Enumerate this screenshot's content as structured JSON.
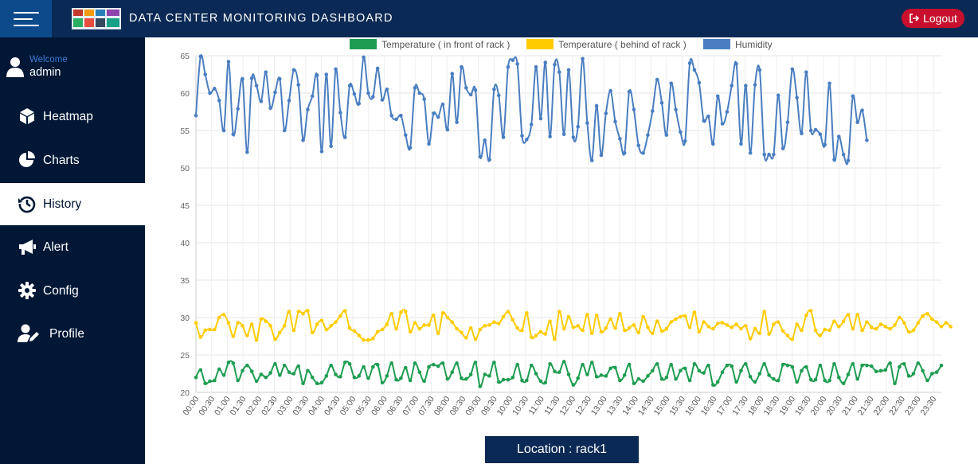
{
  "header": {
    "title": "DATA CENTER MONITORING DASHBOARD",
    "logout_label": "Logout"
  },
  "user": {
    "welcome": "Welcome",
    "name": "admin"
  },
  "sidebar": {
    "items": [
      {
        "label": "Heatmap",
        "icon": "cube-icon",
        "active": false
      },
      {
        "label": "Charts",
        "icon": "pie-chart-icon",
        "active": false
      },
      {
        "label": "History",
        "icon": "history-icon",
        "active": true
      },
      {
        "label": "Alert",
        "icon": "megaphone-icon",
        "active": false
      },
      {
        "label": "Config",
        "icon": "gear-icon",
        "active": false
      },
      {
        "label": "Profile",
        "icon": "user-edit-icon",
        "active": false
      }
    ]
  },
  "location": "Location : rack1",
  "colors": {
    "header": "#0a2a55",
    "sidebar": "#001735",
    "logout": "#c8102e",
    "front": "#1e9d52",
    "behind": "#ffcc00",
    "humidity": "#4a7ec0"
  },
  "chart_data": {
    "type": "line",
    "ylim": [
      20,
      65
    ],
    "yticks": [
      20,
      25,
      30,
      35,
      40,
      45,
      50,
      55,
      60,
      65
    ],
    "grid": true,
    "legend_position": "top-center",
    "x_tick_labels": [
      "00:00",
      "00:30",
      "01:00",
      "01:30",
      "02:00",
      "02:30",
      "03:00",
      "03:30",
      "04:00",
      "04:30",
      "05:00",
      "05:30",
      "06:00",
      "06:30",
      "07:00",
      "07:30",
      "08:00",
      "08:30",
      "09:00",
      "09:30",
      "10:00",
      "10:30",
      "11:00",
      "11:30",
      "12:00",
      "12:30",
      "13:00",
      "13:30",
      "14:00",
      "14:30",
      "15:00",
      "15:30",
      "16:00",
      "16:30",
      "17:00",
      "17:30",
      "18:00",
      "18:30",
      "19:00",
      "19:30",
      "20:00",
      "20:30",
      "21:00",
      "21:30",
      "22:00",
      "22:30",
      "23:00",
      "23:30"
    ],
    "series": [
      {
        "name": "Temperature ( in front of rack )",
        "color": "#1e9d52",
        "values": [
          22.0,
          23.0,
          21.2,
          21.5,
          21.6,
          23.1,
          22.3,
          24.0,
          23.9,
          21.6,
          22.9,
          23.6,
          22.8,
          21.5,
          22.4,
          22.0,
          22.6,
          23.8,
          22.3,
          23.6,
          22.7,
          22.5,
          23.5,
          21.2,
          22.9,
          22.0,
          21.2,
          21.3,
          22.2,
          23.6,
          22.4,
          22.1,
          24.0,
          23.8,
          22.0,
          22.2,
          23.4,
          21.9,
          23.4,
          23.7,
          21.3,
          22.2,
          23.9,
          21.7,
          21.9,
          23.3,
          21.6,
          23.9,
          22.7,
          21.5,
          23.4,
          23.7,
          23.5,
          23.9,
          21.8,
          22.7,
          23.9,
          21.9,
          21.8,
          22.4,
          24.0,
          20.8,
          22.4,
          22.2,
          24.0,
          21.4,
          21.7,
          21.7,
          22.0,
          23.7,
          21.6,
          21.6,
          23.6,
          22.5,
          21.5,
          21.3,
          23.8,
          22.8,
          22.7,
          24.1,
          22.4,
          21.0,
          21.9,
          23.7,
          22.4,
          24.0,
          22.1,
          22.3,
          22.2,
          23.2,
          23.3,
          21.6,
          22.3,
          23.7,
          21.2,
          21.8,
          21.5,
          22.2,
          22.9,
          23.8,
          21.8,
          22.0,
          23.7,
          21.8,
          22.9,
          23.2,
          21.6,
          23.8,
          22.9,
          22.6,
          23.6,
          21.0,
          21.4,
          22.7,
          23.6,
          23.5,
          21.4,
          22.9,
          23.8,
          22.1,
          21.4,
          22.5,
          23.8,
          22.3,
          21.8,
          21.6,
          23.7,
          23.6,
          23.4,
          21.4,
          22.9,
          23.4,
          21.7,
          21.7,
          23.6,
          21.6,
          21.6,
          23.8,
          22.0,
          21.2,
          22.4,
          23.8,
          21.8,
          23.6,
          23.6,
          23.5,
          22.8,
          22.9,
          23.0,
          23.9,
          21.2,
          23.4,
          23.8,
          22.2,
          22.5,
          23.9,
          22.9,
          21.6,
          22.5,
          22.7,
          23.6
        ]
      },
      {
        "name": "Temperature ( behind of rack )",
        "color": "#ffcc00",
        "values": [
          29.3,
          27.4,
          28.3,
          28.4,
          28.4,
          30.0,
          30.4,
          29.3,
          27.5,
          29.3,
          28.9,
          27.6,
          29.1,
          27.0,
          29.8,
          29.5,
          28.9,
          27.1,
          28.0,
          28.9,
          30.8,
          28.3,
          30.8,
          30.5,
          30.9,
          28.0,
          29.1,
          29.6,
          28.4,
          28.9,
          29.4,
          30.2,
          30.9,
          28.6,
          28.2,
          27.6,
          27.0,
          27.0,
          27.2,
          28.1,
          28.4,
          29.1,
          30.5,
          28.5,
          30.7,
          30.8,
          28.1,
          29.3,
          28.5,
          29.0,
          29.0,
          30.3,
          27.9,
          30.6,
          30.0,
          29.4,
          28.5,
          28.0,
          27.3,
          28.6,
          27.1,
          28.4,
          28.9,
          29.0,
          29.4,
          29.2,
          30.1,
          30.8,
          29.7,
          28.6,
          28.3,
          30.6,
          27.4,
          27.6,
          28.1,
          27.8,
          29.5,
          27.1,
          30.8,
          28.5,
          30.1,
          28.7,
          28.9,
          28.3,
          30.4,
          27.9,
          30.3,
          28.1,
          28.6,
          29.8,
          28.6,
          30.5,
          28.3,
          28.6,
          29.0,
          28.0,
          30.1,
          28.7,
          27.9,
          29.5,
          28.2,
          28.5,
          29.4,
          29.8,
          30.1,
          30.2,
          28.7,
          30.7,
          28.1,
          29.4,
          28.8,
          28.5,
          29.2,
          29.3,
          29.0,
          28.7,
          29.1,
          28.5,
          28.9,
          27.2,
          28.5,
          27.9,
          30.8,
          27.8,
          29.1,
          29.4,
          28.2,
          27.6,
          27.1,
          29.1,
          28.3,
          30.3,
          30.9,
          28.3,
          27.6,
          28.4,
          28.3,
          29.5,
          28.8,
          29.5,
          30.4,
          28.5,
          30.4,
          28.3,
          29.4,
          28.7,
          28.5,
          29.1,
          28.8,
          28.5,
          29.0,
          30.0,
          29.3,
          28.1,
          28.3,
          29.3,
          30.2,
          30.5,
          29.8,
          29.4,
          28.8,
          29.3,
          28.8
        ]
      },
      {
        "name": "Humidity",
        "color": "#4a7ec0",
        "values": [
          57.0,
          64.9,
          62.5,
          60.0,
          60.6,
          59.0,
          55.0,
          64.2,
          54.5,
          57.9,
          61.9,
          52.1,
          62.0,
          61.0,
          58.9,
          62.8,
          58.0,
          60.1,
          61.9,
          55.0,
          59.0,
          63.1,
          61.1,
          53.7,
          57.8,
          59.6,
          62.4,
          52.2,
          62.5,
          52.9,
          63.2,
          57.4,
          54.1,
          61.0,
          59.9,
          58.6,
          64.8,
          60.0,
          59.5,
          63.3,
          59.1,
          60.5,
          57.0,
          56.5,
          57.0,
          54.4,
          52.7,
          60.7,
          60.0,
          59.2,
          53.2,
          57.3,
          56.8,
          58.5,
          55.1,
          62.6,
          56.1,
          63.5,
          60.7,
          59.8,
          60.4,
          51.5,
          53.7,
          51.1,
          60.5,
          59.7,
          54.1,
          63.5,
          64.4,
          63.9,
          54.3,
          53.8,
          55.8,
          63.5,
          56.6,
          64.1,
          54.2,
          63.8,
          62.8,
          54.5,
          63.1,
          54.1,
          55.5,
          64.6,
          56.0,
          51.0,
          58.3,
          51.7,
          57.3,
          60.3,
          56.2,
          53.9,
          52.0,
          60.2,
          57.8,
          53.0,
          52.0,
          54.4,
          57.6,
          61.8,
          58.7,
          54.4,
          61.3,
          57.8,
          54.8,
          53.6,
          64.0,
          63.1,
          61.4,
          56.3,
          56.9,
          53.2,
          59.6,
          55.9,
          57.5,
          61.0,
          63.9,
          53.2,
          61.0,
          52.0,
          61.1,
          63.1,
          51.8,
          51.8,
          51.8,
          59.7,
          52.6,
          56.1,
          63.2,
          59.4,
          54.6,
          62.8,
          55.0,
          55.1,
          54.5,
          53.1,
          61.3,
          51.1,
          54.2,
          51.8,
          51.0,
          59.6,
          56.1,
          57.7,
          53.7
        ]
      }
    ]
  }
}
